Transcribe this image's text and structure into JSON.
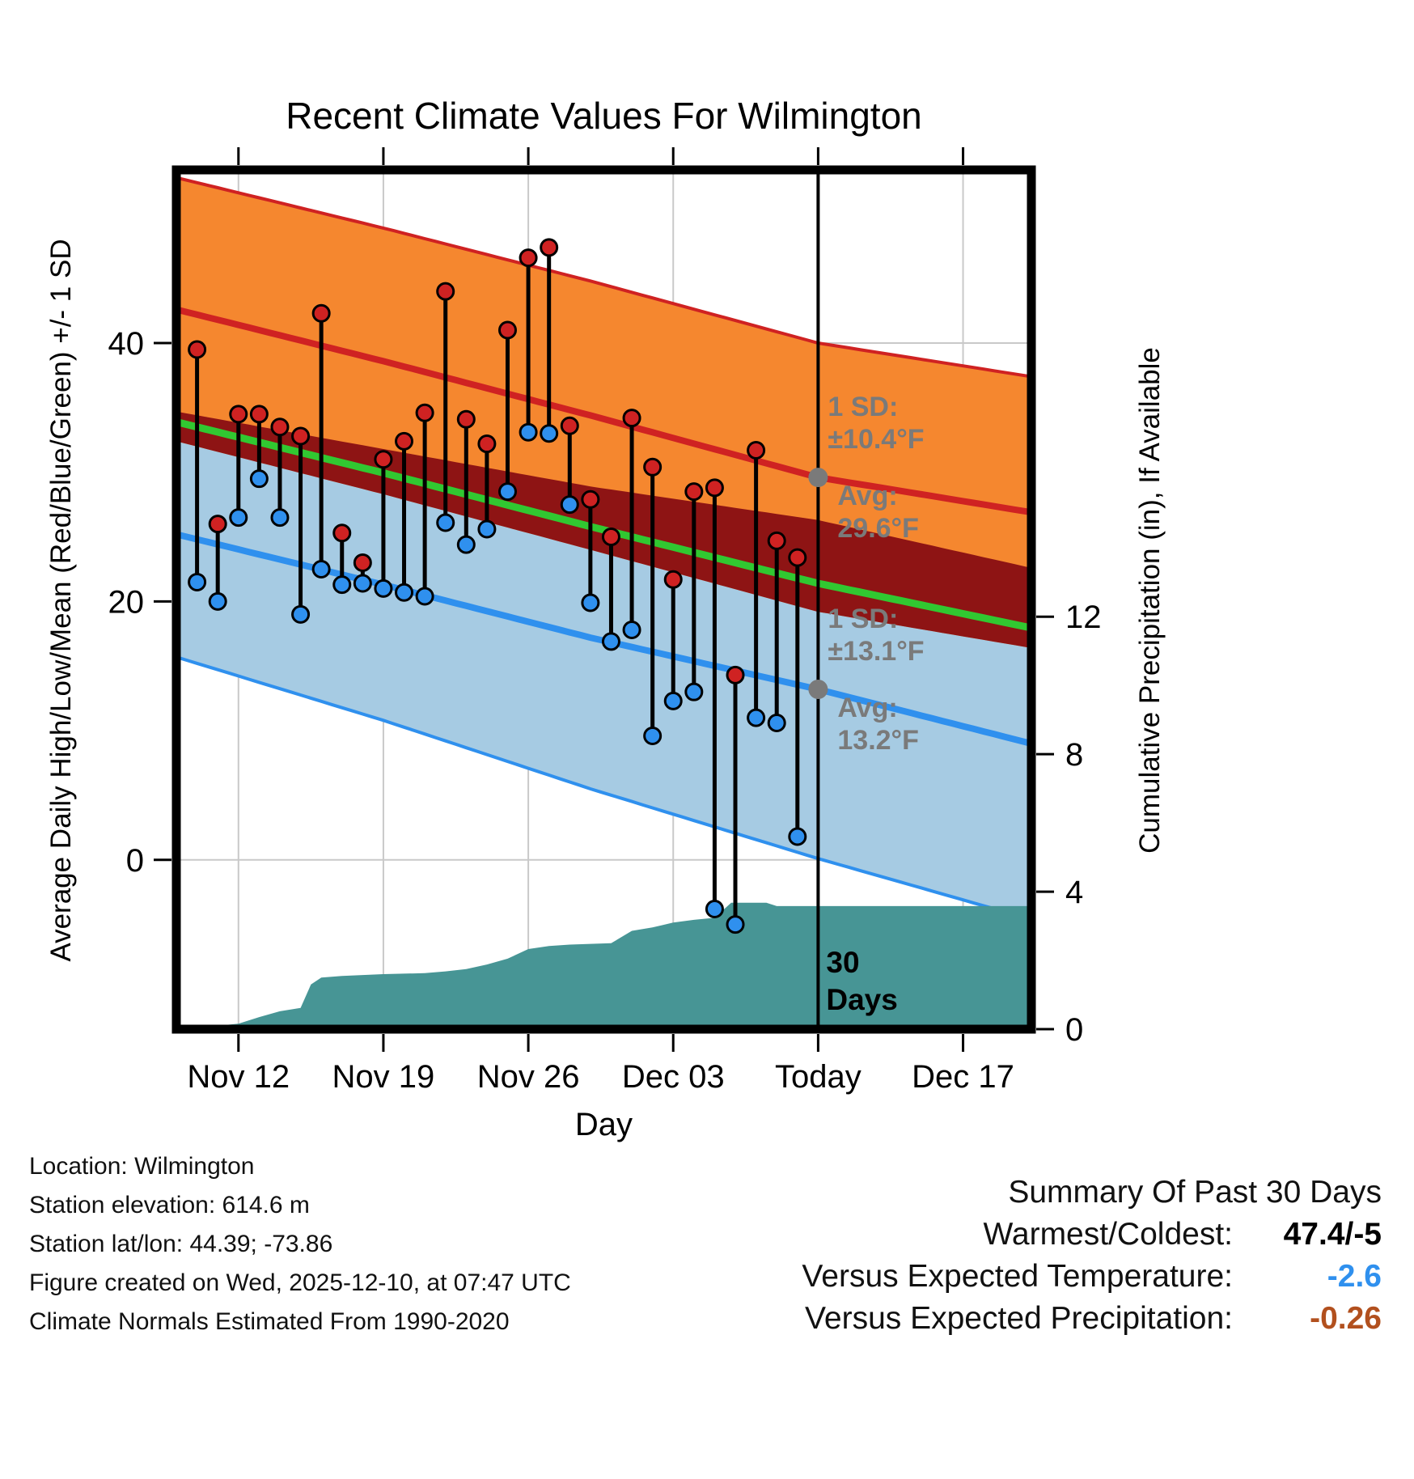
{
  "title": "Recent Climate Values For Wilmington",
  "chart_data": {
    "type": "line",
    "title": "Recent Climate Values For Wilmington",
    "x_axis": {
      "label": "Day",
      "day_range": [
        0,
        41.3
      ],
      "ticks": [
        {
          "label": "Nov 12",
          "day": 3
        },
        {
          "label": "Nov 19",
          "day": 10
        },
        {
          "label": "Nov 26",
          "day": 17
        },
        {
          "label": "Dec 03",
          "day": 24
        },
        {
          "label": "Today",
          "day": 31
        },
        {
          "label": "Dec 17",
          "day": 38
        }
      ]
    },
    "temp_axis": {
      "label": "Average Daily High/Low/Mean (Red/Blue/Green) +/- 1 SD",
      "range": [
        -13.1,
        53.4
      ],
      "ticks": [
        0,
        20,
        40
      ]
    },
    "precip_axis": {
      "label": "Cumulative Precipitation (in), If Available",
      "range": [
        0,
        25
      ],
      "ticks": [
        0,
        4,
        8,
        12
      ]
    },
    "daily": [
      {
        "date": "Nov 10",
        "day": 1,
        "high": 39.5,
        "low": 21.5
      },
      {
        "date": "Nov 11",
        "day": 2,
        "high": 26.0,
        "low": 20.0
      },
      {
        "date": "Nov 12",
        "day": 3,
        "high": 34.5,
        "low": 26.5
      },
      {
        "date": "Nov 13",
        "day": 4,
        "high": 34.5,
        "low": 29.5
      },
      {
        "date": "Nov 14",
        "day": 5,
        "high": 33.5,
        "low": 26.5
      },
      {
        "date": "Nov 15",
        "day": 6,
        "high": 32.8,
        "low": 19.0
      },
      {
        "date": "Nov 16",
        "day": 7,
        "high": 42.3,
        "low": 22.5
      },
      {
        "date": "Nov 17",
        "day": 8,
        "high": 25.3,
        "low": 21.3
      },
      {
        "date": "Nov 18",
        "day": 9,
        "high": 23.0,
        "low": 21.4
      },
      {
        "date": "Nov 19",
        "day": 10,
        "high": 31.0,
        "low": 21.0
      },
      {
        "date": "Nov 20",
        "day": 11,
        "high": 32.4,
        "low": 20.7
      },
      {
        "date": "Nov 21",
        "day": 12,
        "high": 34.6,
        "low": 20.4
      },
      {
        "date": "Nov 22",
        "day": 13,
        "high": 44.0,
        "low": 26.1
      },
      {
        "date": "Nov 23",
        "day": 14,
        "high": 34.1,
        "low": 24.4
      },
      {
        "date": "Nov 24",
        "day": 15,
        "high": 32.2,
        "low": 25.6
      },
      {
        "date": "Nov 25",
        "day": 16,
        "high": 41.0,
        "low": 28.5
      },
      {
        "date": "Nov 26",
        "day": 17,
        "high": 46.6,
        "low": 33.1
      },
      {
        "date": "Nov 27",
        "day": 18,
        "high": 47.4,
        "low": 33.0
      },
      {
        "date": "Nov 28",
        "day": 19,
        "high": 33.6,
        "low": 27.5
      },
      {
        "date": "Nov 29",
        "day": 20,
        "high": 27.9,
        "low": 19.9
      },
      {
        "date": "Nov 30",
        "day": 21,
        "high": 25.0,
        "low": 16.9
      },
      {
        "date": "Dec 01",
        "day": 22,
        "high": 34.2,
        "low": 17.8
      },
      {
        "date": "Dec 02",
        "day": 23,
        "high": 30.4,
        "low": 9.6
      },
      {
        "date": "Dec 03",
        "day": 24,
        "high": 21.7,
        "low": 12.3
      },
      {
        "date": "Dec 04",
        "day": 25,
        "high": 28.5,
        "low": 13.0
      },
      {
        "date": "Dec 05",
        "day": 26,
        "high": 28.8,
        "low": -3.8
      },
      {
        "date": "Dec 06",
        "day": 27,
        "high": 14.3,
        "low": -5.0
      },
      {
        "date": "Dec 07",
        "day": 28,
        "high": 31.7,
        "low": 11.0
      },
      {
        "date": "Dec 08",
        "day": 29,
        "high": 24.7,
        "low": 10.6
      },
      {
        "date": "Dec 09",
        "day": 30,
        "high": 23.4,
        "low": 1.8
      }
    ],
    "normals": [
      {
        "day": 0,
        "avg_high": 42.6,
        "sd_high": 10.2,
        "avg_low": 25.2,
        "sd_low": 9.5
      },
      {
        "day": 10,
        "avg_high": 38.6,
        "sd_high": 10.3,
        "avg_low": 21.3,
        "sd_low": 10.5
      },
      {
        "day": 20,
        "avg_high": 34.4,
        "sd_high": 10.4,
        "avg_low": 17.2,
        "sd_low": 11.7
      },
      {
        "day": 31,
        "avg_high": 29.6,
        "sd_high": 10.4,
        "avg_low": 13.2,
        "sd_low": 13.1
      },
      {
        "day": 41.3,
        "avg_high": 26.9,
        "sd_high": 10.5,
        "avg_low": 9.0,
        "sd_low": 13.6
      }
    ],
    "precip_cumulative": [
      {
        "day": 0,
        "cum": 0.0
      },
      {
        "day": 1,
        "cum": 0.04
      },
      {
        "day": 2,
        "cum": 0.1
      },
      {
        "day": 3,
        "cum": 0.16
      },
      {
        "day": 4,
        "cum": 0.35
      },
      {
        "day": 5,
        "cum": 0.52
      },
      {
        "day": 6,
        "cum": 0.62
      },
      {
        "day": 6.5,
        "cum": 1.3
      },
      {
        "day": 7,
        "cum": 1.5
      },
      {
        "day": 8,
        "cum": 1.55
      },
      {
        "day": 10,
        "cum": 1.6
      },
      {
        "day": 12,
        "cum": 1.63
      },
      {
        "day": 13,
        "cum": 1.68
      },
      {
        "day": 14,
        "cum": 1.75
      },
      {
        "day": 15,
        "cum": 1.88
      },
      {
        "day": 16,
        "cum": 2.05
      },
      {
        "day": 17,
        "cum": 2.33
      },
      {
        "day": 18,
        "cum": 2.42
      },
      {
        "day": 19,
        "cum": 2.46
      },
      {
        "day": 21,
        "cum": 2.5
      },
      {
        "day": 22,
        "cum": 2.86
      },
      {
        "day": 23,
        "cum": 2.96
      },
      {
        "day": 24,
        "cum": 3.1
      },
      {
        "day": 25,
        "cum": 3.18
      },
      {
        "day": 26,
        "cum": 3.24
      },
      {
        "day": 26.8,
        "cum": 3.68
      },
      {
        "day": 28.5,
        "cum": 3.68
      },
      {
        "day": 29,
        "cum": 3.58
      },
      {
        "day": 41.3,
        "cum": 3.58
      }
    ],
    "today": {
      "day": 31,
      "avg_high": 29.6,
      "sd_high": 10.4,
      "avg_low": 13.2,
      "sd_low": 13.1,
      "period_label_lines": [
        "30",
        "Days"
      ],
      "annotations": {
        "high": [
          "1 SD:",
          "±10.4°F",
          "Avg:",
          "29.6°F"
        ],
        "low": [
          "1 SD:",
          "±13.1°F",
          "Avg:",
          "13.2°F"
        ]
      }
    },
    "colors": {
      "high_band": "#f5872f",
      "high_line": "#cf2222",
      "overlap_band": "#8e1414",
      "low_band": "#a6cbe3",
      "low_line": "#2f90ee",
      "mean_line": "#31c831",
      "precip_area": "#479595",
      "annotation_gray": "#7a7a7a",
      "grid": "#c9c9c9",
      "axis": "#000000"
    }
  },
  "footer": {
    "lines": [
      "Location: Wilmington",
      "Station elevation: 614.6 m",
      "Station lat/lon: 44.39; -73.86",
      "Figure created on Wed, 2025-12-10, at 07:47 UTC",
      "Climate Normals Estimated From 1990-2020"
    ]
  },
  "summary": {
    "title": "Summary Of Past 30 Days",
    "rows": [
      {
        "label": "Warmest/Coldest:",
        "value": "47.4/-5",
        "color": "#000000"
      },
      {
        "label": "Versus Expected Temperature:",
        "value": "-2.6",
        "color": "#2f90ee"
      },
      {
        "label": "Versus Expected Precipitation:",
        "value": "-0.26",
        "color": "#b2501e"
      }
    ]
  }
}
